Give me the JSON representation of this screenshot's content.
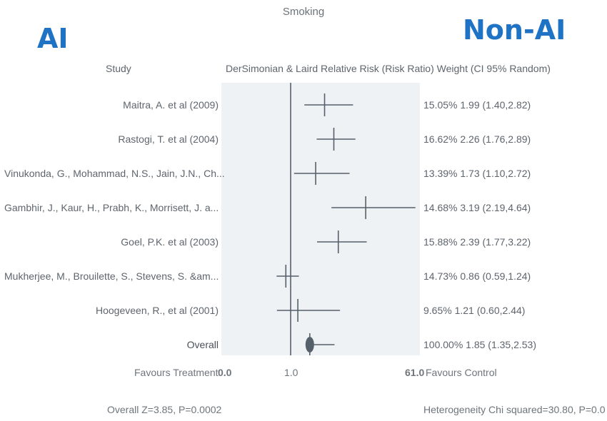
{
  "page": {
    "title": "Smoking",
    "label_left": "AI",
    "label_right": "Non-AI"
  },
  "headers": {
    "study": "Study",
    "method": "DerSimonian & Laird Relative Risk (Risk Ratio) Weight (CI 95% Random)"
  },
  "chart_data": {
    "type": "forest",
    "title": "Smoking",
    "x_scale": "linear",
    "xlim": [
      0.0,
      3.6
    ],
    "reference_line": 1.0,
    "rows": [
      {
        "study": "Maitra, A. et al (2009)",
        "weight": "15.05%",
        "rr": 1.99,
        "ci_low": 1.4,
        "ci_high": 2.82,
        "text": "15.05% 1.99 (1.40,2.82)"
      },
      {
        "study": "Rastogi, T. et al (2004)",
        "weight": "16.62%",
        "rr": 2.26,
        "ci_low": 1.76,
        "ci_high": 2.89,
        "text": "16.62% 2.26 (1.76,2.89)"
      },
      {
        "study": "Vinukonda, G., Mohammad, N.S., Jain, J.N., Ch...",
        "weight": "13.39%",
        "rr": 1.73,
        "ci_low": 1.1,
        "ci_high": 2.72,
        "text": "13.39% 1.73 (1.10,2.72)"
      },
      {
        "study": "Gambhir, J., Kaur, H., Prabh, K., Morrisett, J. a...",
        "weight": "14.68%",
        "rr": 3.19,
        "ci_low": 2.19,
        "ci_high": 4.64,
        "text": "14.68% 3.19 (2.19,4.64)"
      },
      {
        "study": "Goel, P.K. et al (2003)",
        "weight": "15.88%",
        "rr": 2.39,
        "ci_low": 1.77,
        "ci_high": 3.22,
        "text": "15.88% 2.39 (1.77,3.22)"
      },
      {
        "study": "Mukherjee, M., Brouilette, S., Stevens, S. &am...",
        "weight": "14.73%",
        "rr": 0.86,
        "ci_low": 0.59,
        "ci_high": 1.24,
        "text": "14.73% 0.86 (0.59,1.24)"
      },
      {
        "study": "Hoogeveen, R., et al (2001)",
        "weight": "9.65%",
        "rr": 1.21,
        "ci_low": 0.6,
        "ci_high": 2.44,
        "text": "9.65% 1.21 (0.60,2.44)"
      }
    ],
    "overall": {
      "study": "Overall",
      "weight": "100.00%",
      "rr": 1.85,
      "ci_low": 1.35,
      "ci_high": 2.53,
      "text": "100.00% 1.85 (1.35,2.53)"
    },
    "axis": {
      "left_label": "Favours Treatment",
      "left_value": "0.0",
      "center_value": "1.0",
      "right_value": "61.0",
      "right_label": "Favours Control"
    },
    "footer": {
      "overall_z": "Overall Z=3.85, P=0.0002",
      "heterogeneity": "Heterogeneity Chi squared=30.80, P=0.0"
    },
    "colors": {
      "panel": "#eef2f5",
      "marks": "#55606a"
    }
  }
}
